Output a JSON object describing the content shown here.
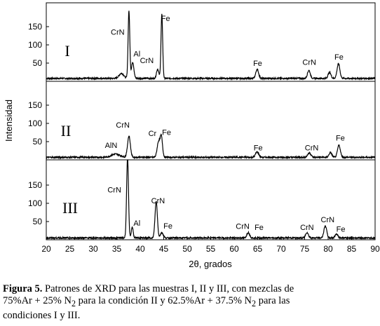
{
  "chart_data": {
    "type": "line",
    "xlabel": "2θ, grados",
    "ylabel": "Intensidad",
    "xlim": [
      20,
      90
    ],
    "x_ticks": [
      "20",
      "25",
      "30",
      "35",
      "40",
      "45",
      "50",
      "55",
      "60",
      "65",
      "70",
      "75",
      "80",
      "85",
      "90"
    ],
    "y_ticks": [
      "50",
      "100",
      "150"
    ],
    "grid": false,
    "panels": [
      {
        "name": "I",
        "ylim": [
          0,
          190
        ],
        "baseline": 8,
        "peaks": [
          {
            "x": 36.0,
            "y": 14,
            "w": 0.5
          },
          {
            "x": 37.6,
            "y": 185,
            "w": 0.18
          },
          {
            "x": 38.4,
            "y": 45,
            "w": 0.25
          },
          {
            "x": 43.7,
            "y": 25,
            "w": 0.25
          },
          {
            "x": 44.6,
            "y": 175,
            "w": 0.18
          },
          {
            "x": 64.9,
            "y": 25,
            "w": 0.3
          },
          {
            "x": 75.9,
            "y": 22,
            "w": 0.3
          },
          {
            "x": 80.3,
            "y": 17,
            "w": 0.3
          },
          {
            "x": 82.2,
            "y": 40,
            "w": 0.3
          }
        ],
        "labels": [
          {
            "text": "CrN",
            "x": 35.2,
            "y": 128
          },
          {
            "text": "Al",
            "x": 39.3,
            "y": 68
          },
          {
            "text": "CrN",
            "x": 41.4,
            "y": 50
          },
          {
            "text": "Fe",
            "x": 45.4,
            "y": 165
          },
          {
            "text": "Fe",
            "x": 65.0,
            "y": 42
          },
          {
            "text": "CrN",
            "x": 76.0,
            "y": 45
          },
          {
            "text": "Fe",
            "x": 82.3,
            "y": 60
          }
        ]
      },
      {
        "name": "II",
        "ylim": [
          0,
          190
        ],
        "baseline": 7,
        "peaks": [
          {
            "x": 34.8,
            "y": 9,
            "w": 0.9
          },
          {
            "x": 37.6,
            "y": 58,
            "w": 0.3
          },
          {
            "x": 43.9,
            "y": 42,
            "w": 0.3
          },
          {
            "x": 44.5,
            "y": 55,
            "w": 0.25
          },
          {
            "x": 64.9,
            "y": 15,
            "w": 0.35
          },
          {
            "x": 76.0,
            "y": 12,
            "w": 0.35
          },
          {
            "x": 80.5,
            "y": 13,
            "w": 0.3
          },
          {
            "x": 82.3,
            "y": 33,
            "w": 0.3
          }
        ],
        "labels": [
          {
            "text": "AlN",
            "x": 33.8,
            "y": 33
          },
          {
            "text": "CrN",
            "x": 36.3,
            "y": 88
          },
          {
            "text": "Cr",
            "x": 42.6,
            "y": 65
          },
          {
            "text": "Fe",
            "x": 45.6,
            "y": 68
          },
          {
            "text": "Fe",
            "x": 65.1,
            "y": 26
          },
          {
            "text": "CrN",
            "x": 76.5,
            "y": 26
          },
          {
            "text": "Fe",
            "x": 82.6,
            "y": 53
          }
        ]
      },
      {
        "name": "III",
        "ylim": [
          0,
          190
        ],
        "baseline": 5,
        "peaks": [
          {
            "x": 37.3,
            "y": 220,
            "w": 0.2
          },
          {
            "x": 38.3,
            "y": 30,
            "w": 0.2
          },
          {
            "x": 43.4,
            "y": 100,
            "w": 0.25
          },
          {
            "x": 44.6,
            "y": 15,
            "w": 0.3
          },
          {
            "x": 63.0,
            "y": 15,
            "w": 0.3
          },
          {
            "x": 75.5,
            "y": 15,
            "w": 0.3
          },
          {
            "x": 79.4,
            "y": 33,
            "w": 0.3
          },
          {
            "x": 81.8,
            "y": 11,
            "w": 0.3
          }
        ],
        "labels": [
          {
            "text": "CrN",
            "x": 34.5,
            "y": 130
          },
          {
            "text": "Al",
            "x": 39.3,
            "y": 38
          },
          {
            "text": "CrN",
            "x": 43.8,
            "y": 100
          },
          {
            "text": "Fe",
            "x": 45.9,
            "y": 31
          },
          {
            "text": "CrN",
            "x": 61.8,
            "y": 30
          },
          {
            "text": "Fe",
            "x": 65.3,
            "y": 27
          },
          {
            "text": "CrN",
            "x": 75.5,
            "y": 27
          },
          {
            "text": "CrN",
            "x": 79.9,
            "y": 48
          },
          {
            "text": "Fe",
            "x": 82.7,
            "y": 22
          }
        ]
      }
    ]
  },
  "caption": {
    "bold": "Figura 5.",
    "line1": " Patrones de XRD para las muestras I, II y III, con mezclas de",
    "line2a": "75%Ar + 25% N",
    "sub1": "2",
    "line2b": " para la condición II y 62.5%Ar + 37.5% N",
    "sub2": "2",
    "line2c": " para las",
    "line3": "condiciones I y III."
  }
}
